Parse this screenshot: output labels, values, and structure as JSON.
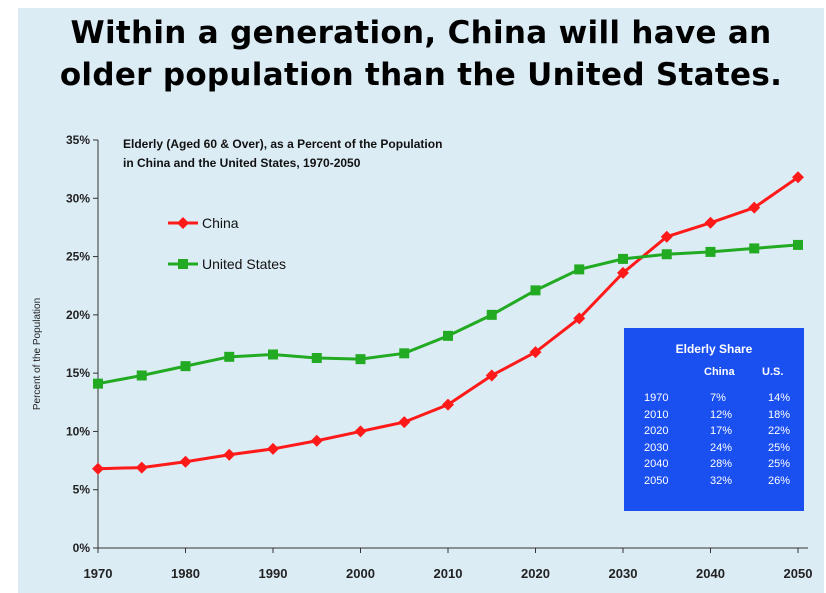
{
  "page_title_lines": [
    "Within a generation, China will have an",
    "older population than the United States."
  ],
  "chart_data": {
    "type": "line",
    "title": "Elderly (Aged 60 & Over), as a Percent of the Population",
    "subtitle": "in China and the United States, 1970-2050",
    "ylabel": "Percent of the Population",
    "xlabel": "",
    "xlim": [
      1970,
      2050
    ],
    "ylim": [
      0,
      35
    ],
    "x_ticks": [
      "1970",
      "1980",
      "1990",
      "2000",
      "2010",
      "2020",
      "2030",
      "2040",
      "2050"
    ],
    "y_ticks": [
      "0%",
      "5%",
      "10%",
      "15%",
      "20%",
      "25%",
      "30%",
      "35%"
    ],
    "x": [
      1970,
      1975,
      1980,
      1985,
      1990,
      1995,
      2000,
      2005,
      2010,
      2015,
      2020,
      2025,
      2030,
      2035,
      2040,
      2045,
      2050
    ],
    "series": [
      {
        "name": "China",
        "color": "#ff1a1a",
        "marker": "diamond",
        "values": [
          6.8,
          6.9,
          7.4,
          8.0,
          8.5,
          9.2,
          10.0,
          10.8,
          12.3,
          14.8,
          16.8,
          19.7,
          23.6,
          26.7,
          27.9,
          29.2,
          31.8
        ]
      },
      {
        "name": "United States",
        "color": "#22aa22",
        "marker": "square",
        "values": [
          14.1,
          14.8,
          15.6,
          16.4,
          16.6,
          16.3,
          16.2,
          16.7,
          18.2,
          20.0,
          22.1,
          23.9,
          24.8,
          25.2,
          25.4,
          25.7,
          26.0
        ]
      }
    ],
    "legend_placement": "top-left",
    "grid": false,
    "table": {
      "title": "Elderly Share",
      "headers": [
        "",
        "China",
        "U.S."
      ],
      "rows": [
        [
          "1970",
          "7%",
          "14%"
        ],
        [
          "2010",
          "12%",
          "18%"
        ],
        [
          "2020",
          "17%",
          "22%"
        ],
        [
          "2030",
          "24%",
          "25%"
        ],
        [
          "2040",
          "28%",
          "25%"
        ],
        [
          "2050",
          "32%",
          "26%"
        ]
      ]
    }
  }
}
